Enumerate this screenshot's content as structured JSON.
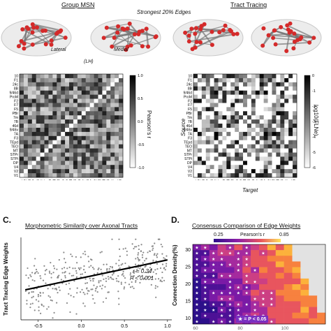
{
  "top": {
    "title_left": "Group MSN",
    "title_right": "Tract Tracing",
    "subtitle": "Strongest 20% Edges",
    "label_lateral": "Lateral",
    "label_medial": "Medial",
    "label_hemisphere": "(LH)"
  },
  "matrix_left": {
    "regions_rows": [
      "10",
      "F1",
      "24c",
      "8B",
      "9/46d",
      "ProM",
      "F2",
      "F7",
      "F5",
      "PBr",
      "7m",
      "7B",
      "46d",
      "9/46v",
      "7A",
      "F3",
      "TEpd",
      "TEO",
      "MT",
      "STPr",
      "STPi",
      "DP",
      "V4",
      "V2",
      "V1"
    ],
    "regions_cols": [
      "V1",
      "V2",
      "V4",
      "DP",
      "STPi",
      "STPr",
      "MT",
      "TEO",
      "TEpd",
      "F3",
      "7A",
      "9/46v",
      "46d",
      "7B",
      "7m",
      "PBr",
      "F5",
      "F7",
      "F2",
      "ProM",
      "9/46d",
      "8B",
      "24c",
      "F1",
      "10"
    ],
    "colorbar_label": "Pearson's r",
    "colorbar_ticks": [
      "1.0",
      "0.5",
      "0.0",
      "-0.5",
      "-1.0"
    ]
  },
  "matrix_right": {
    "regions_rows": [
      "10",
      "F1",
      "24c",
      "8B",
      "9/46d",
      "ProM",
      "F2",
      "F7",
      "F5",
      "PBr",
      "7m",
      "7B",
      "46d",
      "9/46v",
      "7A",
      "F3",
      "TEpd",
      "TEO",
      "MT",
      "STPr",
      "STPi",
      "DP",
      "V4",
      "V2",
      "V1"
    ],
    "regions_cols": [
      "V1",
      "V2",
      "V4",
      "DP",
      "STPi",
      "STPr",
      "MT",
      "TEO",
      "TEpd",
      "F3",
      "7A",
      "9/46v",
      "46d",
      "7B",
      "7m",
      "PBr",
      "F5",
      "F7",
      "F2",
      "ProM",
      "9/46d",
      "8B",
      "24c",
      "F1",
      "10"
    ],
    "y_label": "Source",
    "x_label": "Target",
    "colorbar_label": "log10(FLNe)",
    "colorbar_ticks": [
      "0",
      "-1",
      "-2",
      "-3",
      "-4",
      "-5",
      "-6"
    ]
  },
  "panel_c": {
    "letter": "C.",
    "title": "Morphometric Similarity over Axonal Tracts",
    "ylabel": "Tract Tracing Edge Weights",
    "stat_r": "r = 0.34",
    "stat_p": "P < 0.001",
    "x_ticks": [
      "-0.5",
      "0.0",
      "0.5",
      "1.0"
    ]
  },
  "panel_d": {
    "letter": "D.",
    "title": "Consensus Comparison of Edge Weights",
    "colorbar_label": "Pearson's r",
    "colorbar_min": "0.25",
    "colorbar_max": "0.85",
    "ylabel": "Connection Density(%)",
    "y_ticks": [
      "30",
      "25",
      "20",
      "15",
      "10"
    ],
    "x_ticks": [
      "60",
      "80",
      "100"
    ],
    "legend": "★ = P < 0.05"
  },
  "chart_data": [
    {
      "type": "scatter",
      "title": "Morphometric Similarity over Axonal Tracts",
      "ylabel": "Tract Tracing Edge Weights",
      "xlim": [
        -0.7,
        1.05
      ],
      "x_ticks": [
        -0.5,
        0.0,
        0.5,
        1.0
      ],
      "fit_line": {
        "x": [
          -0.65,
          1.0
        ],
        "y": [
          -3.6,
          -2.0
        ]
      },
      "stats": {
        "r": 0.34,
        "p": "< 0.001"
      },
      "n_points_approx": 380
    },
    {
      "type": "heatmap",
      "title": "Consensus Comparison of Edge Weights",
      "ylabel": "Connection Density(%)",
      "color_range": [
        0.25,
        0.85
      ],
      "y_ticks": [
        30,
        25,
        20,
        15,
        10
      ],
      "x_ticks": [
        60,
        80,
        100
      ]
    }
  ],
  "colors": {
    "brain_node": "#d42a2a",
    "fit_line": "#000000",
    "heat_low": "#2c0f8a",
    "heat_high": "#ffe45c",
    "legend_bg": "#7a2fc0"
  }
}
